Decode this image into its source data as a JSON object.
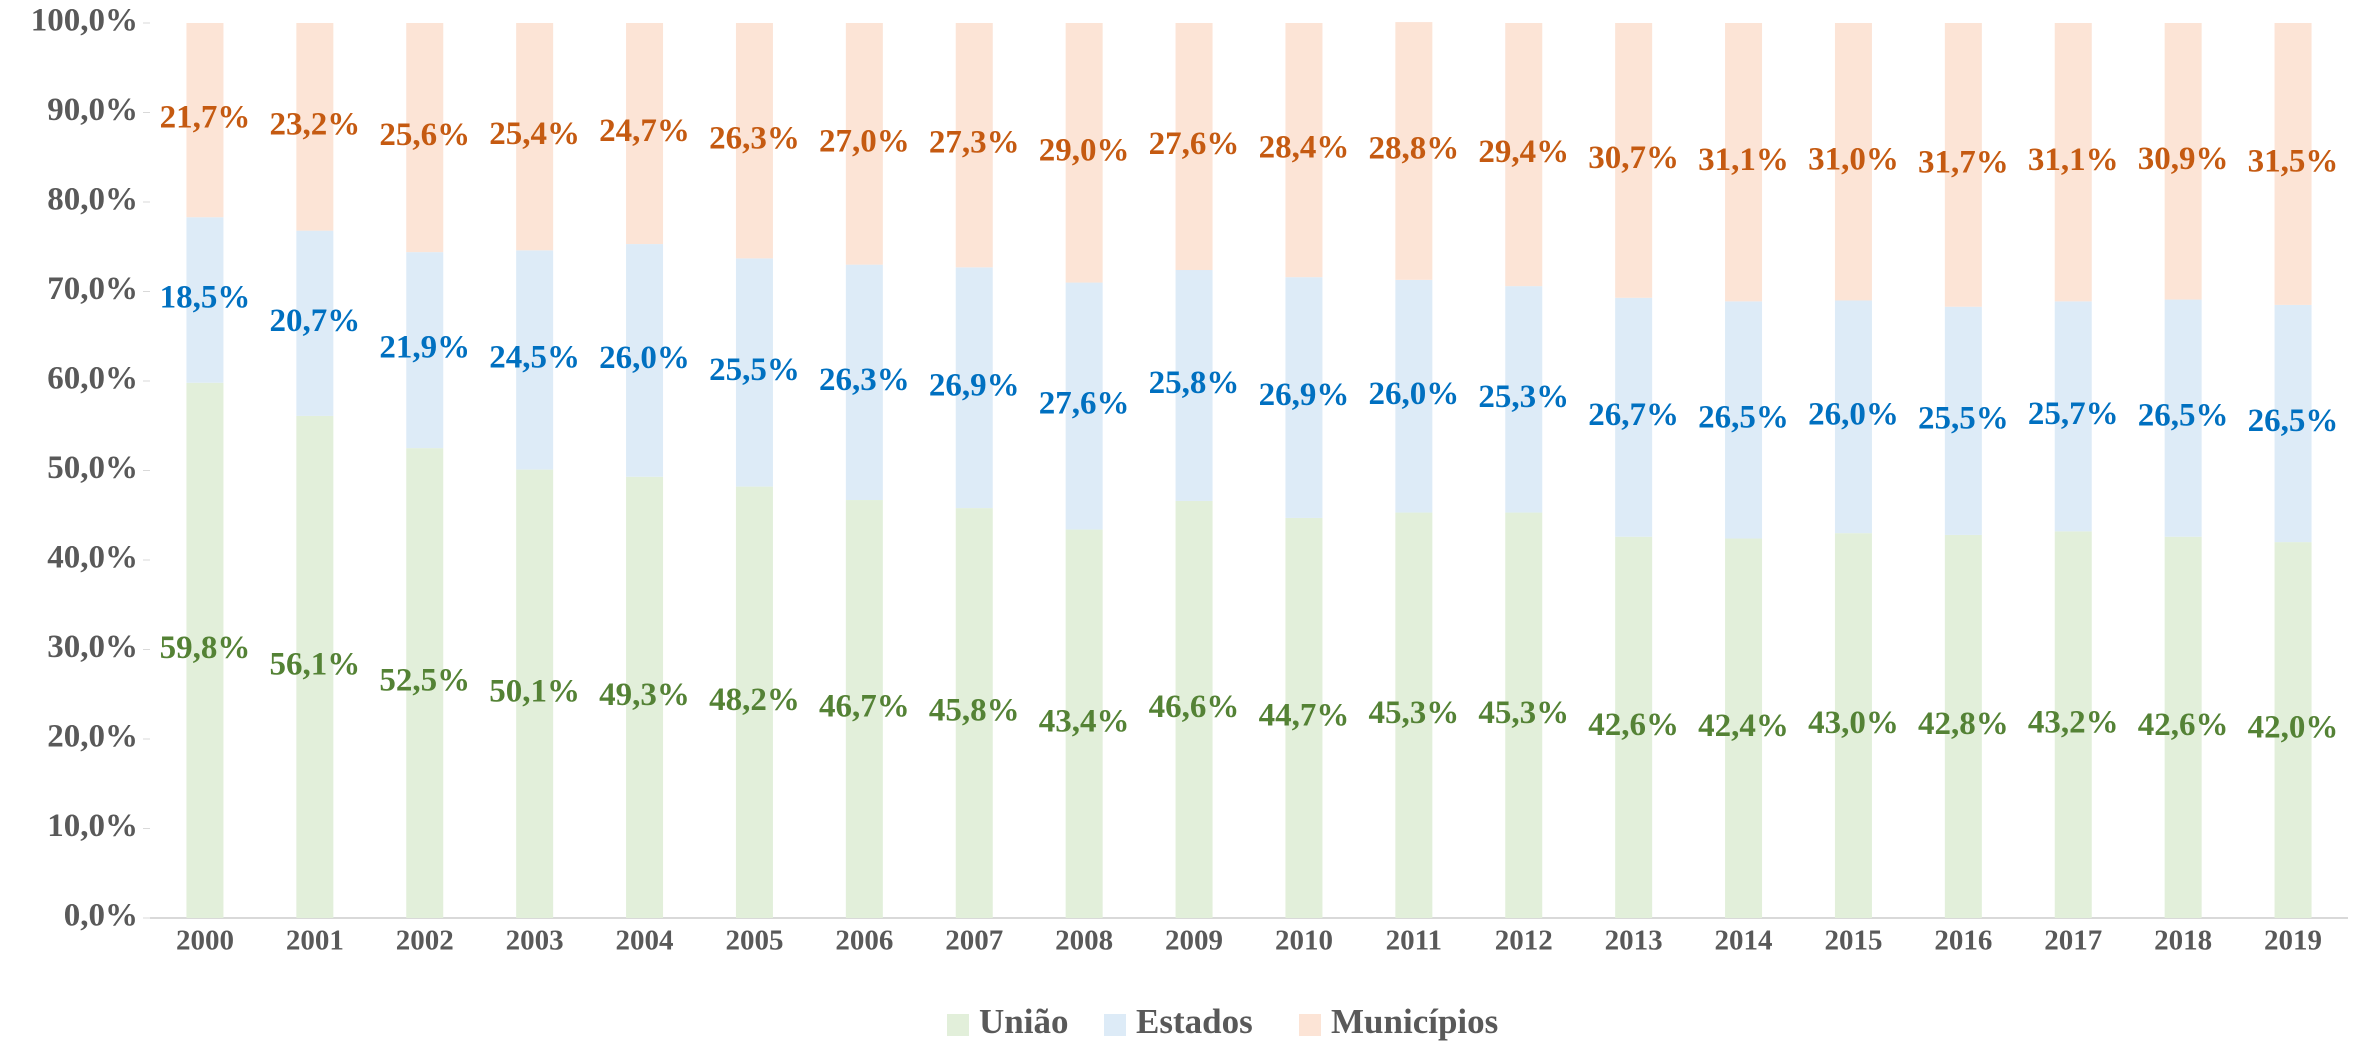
{
  "chart_data": {
    "type": "stacked_bar",
    "categories": [
      "2000",
      "2001",
      "2002",
      "2003",
      "2004",
      "2005",
      "2006",
      "2007",
      "2008",
      "2009",
      "2010",
      "2011",
      "2012",
      "2013",
      "2014",
      "2015",
      "2016",
      "2017",
      "2018",
      "2019"
    ],
    "series": [
      {
        "name": "União",
        "color": "#e2efda",
        "label_color": "#548235",
        "values": [
          59.8,
          56.1,
          52.5,
          50.1,
          49.3,
          48.2,
          46.7,
          45.8,
          43.4,
          46.6,
          44.7,
          45.3,
          45.3,
          42.6,
          42.4,
          43.0,
          42.8,
          43.2,
          42.6,
          42.0
        ],
        "value_labels": [
          "59,8%",
          "56,1%",
          "52,5%",
          "50,1%",
          "49,3%",
          "48,2%",
          "46,7%",
          "45,8%",
          "43,4%",
          "46,6%",
          "44,7%",
          "45,3%",
          "45,3%",
          "42,6%",
          "42,4%",
          "43,0%",
          "42,8%",
          "43,2%",
          "42,6%",
          "42,0%"
        ]
      },
      {
        "name": "Estados",
        "color": "#ddebf7",
        "label_color": "#0070c0",
        "values": [
          18.5,
          20.7,
          21.9,
          24.5,
          26.0,
          25.5,
          26.3,
          26.9,
          27.6,
          25.8,
          26.9,
          26.0,
          25.3,
          26.7,
          26.5,
          26.0,
          25.5,
          25.7,
          26.5,
          26.5
        ],
        "value_labels": [
          "18,5%",
          "20,7%",
          "21,9%",
          "24,5%",
          "26,0%",
          "25,5%",
          "26,3%",
          "26,9%",
          "27,6%",
          "25,8%",
          "26,9%",
          "26,0%",
          "25,3%",
          "26,7%",
          "26,5%",
          "26,0%",
          "25,5%",
          "25,7%",
          "26,5%",
          "26,5%"
        ]
      },
      {
        "name": "Municípios",
        "color": "#fce4d6",
        "label_color": "#c55a11",
        "values": [
          21.7,
          23.2,
          25.6,
          25.4,
          24.7,
          26.3,
          27.0,
          27.3,
          29.0,
          27.6,
          28.4,
          28.8,
          29.4,
          30.7,
          31.1,
          31.0,
          31.7,
          31.1,
          30.9,
          31.5
        ],
        "value_labels": [
          "21,7%",
          "23,2%",
          "25,6%",
          "25,4%",
          "24,7%",
          "26,3%",
          "27,0%",
          "27,3%",
          "29,0%",
          "27,6%",
          "28,4%",
          "28,8%",
          "29,4%",
          "30,7%",
          "31,1%",
          "31,0%",
          "31,7%",
          "31,1%",
          "30,9%",
          "31,5%"
        ]
      }
    ],
    "ylim": [
      0,
      100
    ],
    "yticks": [
      {
        "value": 0,
        "label": "0,0%"
      },
      {
        "value": 10,
        "label": "10,0%"
      },
      {
        "value": 20,
        "label": "20,0%"
      },
      {
        "value": 30,
        "label": "30,0%"
      },
      {
        "value": 40,
        "label": "40,0%"
      },
      {
        "value": 50,
        "label": "50,0%"
      },
      {
        "value": 60,
        "label": "60,0%"
      },
      {
        "value": 70,
        "label": "70,0%"
      },
      {
        "value": 80,
        "label": "80,0%"
      },
      {
        "value": 90,
        "label": "90,0%"
      },
      {
        "value": 100,
        "label": "100,0%"
      }
    ],
    "legend": "bottom"
  }
}
